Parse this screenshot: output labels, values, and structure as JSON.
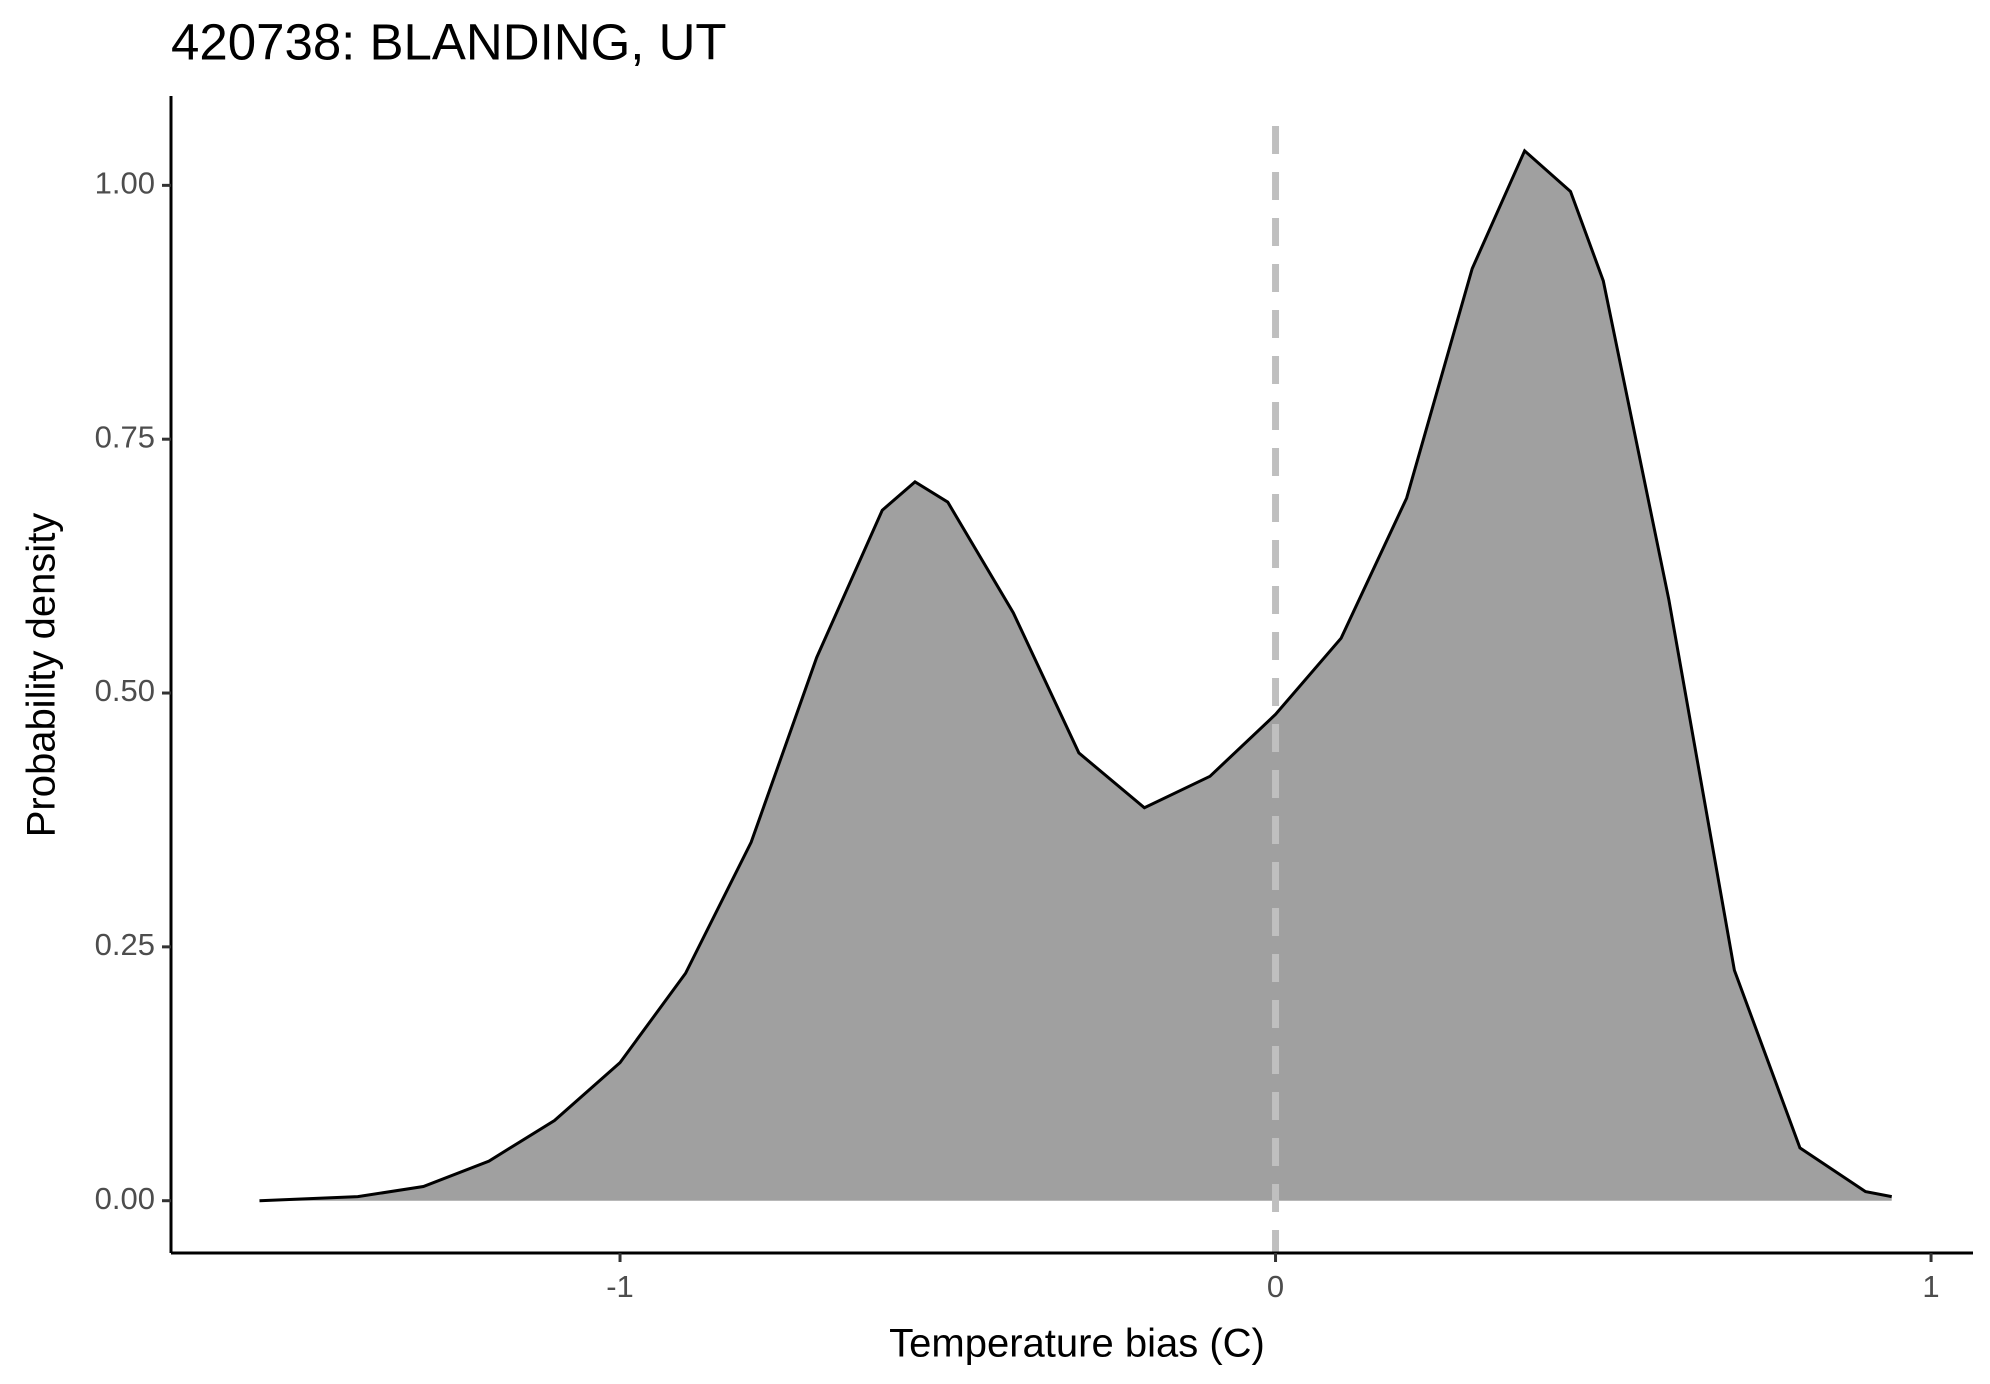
{
  "chart_data": {
    "type": "area",
    "title": "420738: BLANDING, UT",
    "x_label": "Temperature bias (C)",
    "y_label": "Probability density",
    "x": [
      -1.55,
      -1.4,
      -1.3,
      -1.2,
      -1.1,
      -1.0,
      -0.9,
      -0.8,
      -0.7,
      -0.6,
      -0.55,
      -0.5,
      -0.4,
      -0.3,
      -0.2,
      -0.1,
      0,
      0.1,
      0.2,
      0.3,
      0.38,
      0.45,
      0.5,
      0.6,
      0.7,
      0.8,
      0.9,
      0.94
    ],
    "values": [
      0.0,
      0.004,
      0.014,
      0.039,
      0.079,
      0.136,
      0.224,
      0.353,
      0.535,
      0.68,
      0.708,
      0.688,
      0.579,
      0.441,
      0.387,
      0.418,
      0.479,
      0.554,
      0.692,
      0.918,
      1.034,
      0.994,
      0.906,
      0.592,
      0.227,
      0.052,
      0.009,
      0.004
    ],
    "fill_color": "#a0a0a0",
    "line_color": "#000000",
    "reference_line": {
      "x": 0,
      "color": "#bfbfbf"
    },
    "xlim": [
      -1.685,
      1.064
    ],
    "ylim": [
      -0.0515,
      1.088
    ],
    "xticks": [
      -1,
      0,
      1
    ],
    "yticks": [
      {
        "value": 0,
        "label": "0.00"
      },
      {
        "value": 0.25,
        "label": "0.25"
      },
      {
        "value": 0.5,
        "label": "0.50"
      },
      {
        "value": 0.75,
        "label": "0.75"
      },
      {
        "value": 1,
        "label": "1.00"
      }
    ],
    "grid": false
  }
}
